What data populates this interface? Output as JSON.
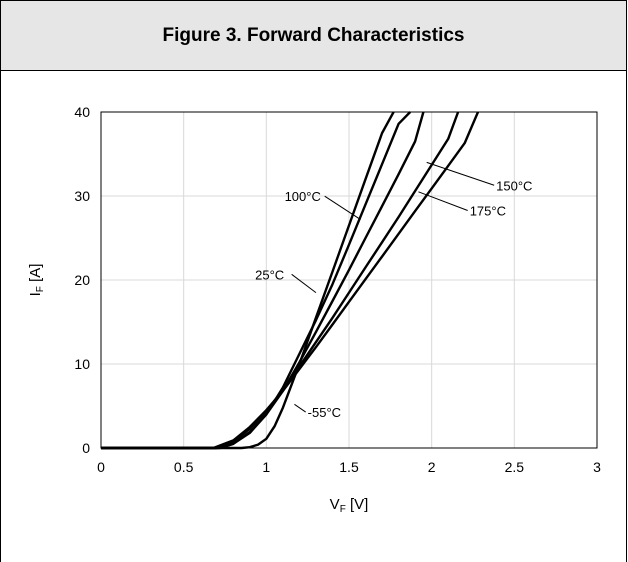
{
  "figure": {
    "title": "Figure 3. Forward Characteristics"
  },
  "chart_data": {
    "type": "line",
    "title": "Figure 3. Forward Characteristics",
    "xlabel": {
      "main": "V",
      "sub": "F",
      "unit": " [V]"
    },
    "ylabel": {
      "main": "I",
      "sub": "F",
      "unit": " [A]"
    },
    "xlim": [
      0,
      3
    ],
    "ylim": [
      0,
      40
    ],
    "xticks": [
      0,
      0.5,
      1,
      1.5,
      2,
      2.5,
      3
    ],
    "xtick_labels": [
      "0",
      "0.5",
      "1",
      "1.5",
      "2",
      "2.5",
      "3"
    ],
    "yticks": [
      0,
      10,
      20,
      30,
      40
    ],
    "ytick_labels": [
      "0",
      "10",
      "20",
      "30",
      "40"
    ],
    "grid": true,
    "line_color": "#000000",
    "grid_color": "#d9d9d9",
    "series": [
      {
        "name": "-55°C",
        "x": [
          0,
          0.85,
          0.9,
          0.95,
          1.0,
          1.05,
          1.1,
          1.2,
          1.3,
          1.4,
          1.5,
          1.6,
          1.7,
          1.77
        ],
        "y": [
          0,
          0,
          0.1,
          0.4,
          1.1,
          2.6,
          4.8,
          10.0,
          15.5,
          21.0,
          26.5,
          32.0,
          37.5,
          40
        ]
      },
      {
        "name": "25°C",
        "x": [
          0,
          0.7,
          0.75,
          0.8,
          0.9,
          1.0,
          1.1,
          1.2,
          1.3,
          1.4,
          1.5,
          1.6,
          1.7,
          1.8,
          1.87
        ],
        "y": [
          0,
          0,
          0.2,
          0.5,
          1.8,
          4.0,
          7.2,
          11.2,
          15.2,
          19.5,
          24.2,
          29.0,
          33.8,
          38.6,
          40
        ]
      },
      {
        "name": "100°C",
        "x": [
          0,
          0.72,
          0.8,
          0.9,
          1.0,
          1.1,
          1.2,
          1.3,
          1.4,
          1.5,
          1.6,
          1.7,
          1.8,
          1.9,
          1.95
        ],
        "y": [
          0,
          0,
          0.5,
          1.9,
          4.0,
          6.8,
          10.2,
          13.8,
          17.5,
          21.2,
          25.0,
          28.8,
          32.6,
          36.5,
          40
        ]
      },
      {
        "name": "150°C",
        "x": [
          0,
          0.7,
          0.8,
          0.9,
          1.0,
          1.1,
          1.2,
          1.3,
          1.4,
          1.5,
          1.6,
          1.7,
          1.8,
          1.9,
          2.0,
          2.1,
          2.16
        ],
        "y": [
          0,
          0,
          0.7,
          2.3,
          4.4,
          6.9,
          9.7,
          12.6,
          15.5,
          18.5,
          21.5,
          24.5,
          27.5,
          30.6,
          33.7,
          36.8,
          40
        ]
      },
      {
        "name": "175°C",
        "x": [
          0,
          0.68,
          0.8,
          0.9,
          1.0,
          1.1,
          1.2,
          1.3,
          1.4,
          1.5,
          1.6,
          1.7,
          1.8,
          1.9,
          2.0,
          2.1,
          2.2,
          2.28
        ],
        "y": [
          0,
          0,
          0.9,
          2.5,
          4.5,
          6.8,
          9.4,
          12.0,
          14.7,
          17.4,
          20.1,
          22.8,
          25.5,
          28.2,
          30.9,
          33.6,
          36.3,
          40
        ]
      }
    ],
    "annotations": [
      {
        "text": "-55°C",
        "x": 1.25,
        "y": 3.8,
        "pointer_to": [
          1.17,
          5.2
        ]
      },
      {
        "text": "25°C",
        "x": 1.02,
        "y": 20.2,
        "pointer_to": [
          1.3,
          18.5
        ]
      },
      {
        "text": "100°C",
        "x": 1.22,
        "y": 29.5,
        "pointer_to": [
          1.57,
          27.2
        ]
      },
      {
        "text": "150°C",
        "x": 2.39,
        "y": 30.8,
        "pointer_to": [
          1.97,
          34.0
        ]
      },
      {
        "text": "175°C",
        "x": 2.23,
        "y": 27.8,
        "pointer_to": [
          1.92,
          30.5
        ]
      }
    ]
  }
}
